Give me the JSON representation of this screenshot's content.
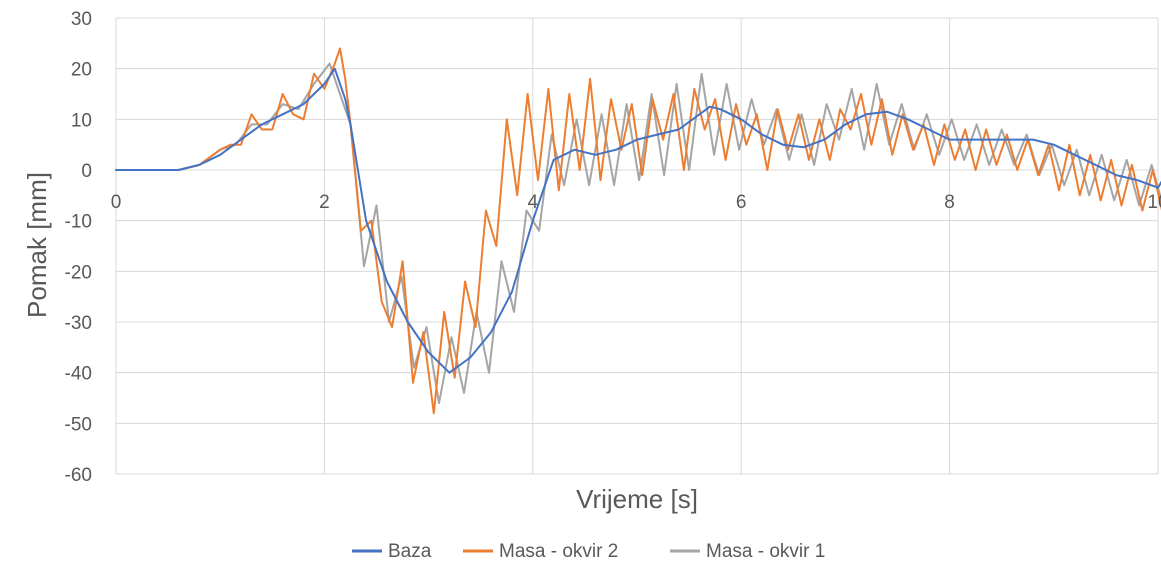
{
  "chart_data": {
    "type": "line",
    "title": "",
    "xlabel": "Vrijeme [s]",
    "ylabel": "Pomak [mm]",
    "xlim": [
      0,
      10
    ],
    "ylim": [
      -60,
      30
    ],
    "x_ticks": [
      0,
      2,
      4,
      6,
      8,
      10
    ],
    "x_tick_labels": [
      "0",
      "2",
      "4",
      "6",
      "8",
      "10"
    ],
    "y_ticks": [
      30,
      20,
      10,
      0,
      -10,
      -20,
      -30,
      -40,
      -50,
      -60
    ],
    "y_tick_labels": [
      "30",
      "20",
      "10",
      "0",
      "-10",
      "-20",
      "-30",
      "-40",
      "-50",
      "-60"
    ],
    "grid": "vertical-and-horizontal",
    "legend_position": "bottom",
    "series": [
      {
        "name": "Baza",
        "color": "#4472c4",
        "x": [
          0,
          0.6,
          0.8,
          1.0,
          1.2,
          1.4,
          1.6,
          1.8,
          2.0,
          2.1,
          2.2,
          2.25,
          2.4,
          2.6,
          2.8,
          3.0,
          3.2,
          3.4,
          3.6,
          3.8,
          4.0,
          4.2,
          4.4,
          4.6,
          4.8,
          5.0,
          5.2,
          5.4,
          5.6,
          5.7,
          5.8,
          6.0,
          6.2,
          6.4,
          6.6,
          6.8,
          7.0,
          7.2,
          7.4,
          7.6,
          7.8,
          8.0,
          8.2,
          8.4,
          8.6,
          8.8,
          9.0,
          9.2,
          9.4,
          9.6,
          9.8,
          10.0,
          10.1
        ],
        "y": [
          0,
          0,
          1,
          3,
          6,
          9,
          11,
          13,
          17,
          20,
          14,
          9,
          -10,
          -22,
          -30,
          -36,
          -40,
          -37,
          -32,
          -24,
          -10,
          2,
          4,
          3,
          4,
          6,
          7,
          8,
          11,
          12.5,
          12,
          10,
          7,
          5,
          4.5,
          6,
          9,
          11,
          11.5,
          10,
          8,
          6,
          6,
          6,
          6,
          6,
          5,
          3,
          1,
          -1,
          -2,
          -3.5,
          0
        ]
      },
      {
        "name": "Masa - okvir 2",
        "color": "#ed7d31",
        "x": [
          0,
          0.6,
          0.8,
          1.0,
          1.1,
          1.2,
          1.3,
          1.4,
          1.5,
          1.6,
          1.7,
          1.8,
          1.9,
          2.0,
          2.1,
          2.15,
          2.2,
          2.25,
          2.35,
          2.45,
          2.55,
          2.65,
          2.75,
          2.85,
          2.95,
          3.05,
          3.15,
          3.25,
          3.35,
          3.45,
          3.55,
          3.65,
          3.75,
          3.85,
          3.95,
          4.05,
          4.15,
          4.25,
          4.35,
          4.45,
          4.55,
          4.65,
          4.75,
          4.85,
          4.95,
          5.05,
          5.15,
          5.25,
          5.35,
          5.45,
          5.55,
          5.65,
          5.75,
          5.85,
          5.95,
          6.05,
          6.15,
          6.25,
          6.35,
          6.45,
          6.55,
          6.65,
          6.75,
          6.85,
          6.95,
          7.05,
          7.15,
          7.25,
          7.35,
          7.45,
          7.55,
          7.65,
          7.75,
          7.85,
          7.95,
          8.05,
          8.15,
          8.25,
          8.35,
          8.45,
          8.55,
          8.65,
          8.75,
          8.85,
          8.95,
          9.05,
          9.15,
          9.25,
          9.35,
          9.45,
          9.55,
          9.65,
          9.75,
          9.85,
          9.95,
          10.05,
          10.1
        ],
        "y": [
          0,
          0,
          1,
          4,
          5,
          5,
          11,
          8,
          8,
          15,
          11,
          10,
          19,
          16,
          21,
          24,
          18,
          9,
          -12,
          -10,
          -26,
          -31,
          -18,
          -42,
          -32,
          -48,
          -28,
          -41,
          -22,
          -31,
          -8,
          -15,
          10,
          -5,
          15,
          -2,
          16,
          -4,
          15,
          0,
          18,
          -2,
          14,
          4,
          13,
          -1,
          14,
          6,
          15,
          0,
          16,
          8,
          14,
          2,
          13,
          5,
          11,
          0,
          12,
          4,
          11,
          2,
          10,
          2,
          12,
          8,
          15,
          5,
          14,
          3,
          11,
          4,
          9,
          1,
          9,
          2,
          8,
          0,
          8,
          1,
          7,
          0,
          6,
          -1,
          5,
          -4,
          5,
          -5,
          3,
          -6,
          2,
          -7,
          1,
          -8,
          0,
          -9,
          -7
        ]
      },
      {
        "name": "Masa - okvir 1",
        "color": "#a5a5a5",
        "x": [
          0,
          0.6,
          0.8,
          1.0,
          1.15,
          1.3,
          1.45,
          1.6,
          1.75,
          1.9,
          2.05,
          2.15,
          2.25,
          2.38,
          2.5,
          2.62,
          2.74,
          2.86,
          2.98,
          3.1,
          3.22,
          3.34,
          3.46,
          3.58,
          3.7,
          3.82,
          3.94,
          4.06,
          4.18,
          4.3,
          4.42,
          4.54,
          4.66,
          4.78,
          4.9,
          5.02,
          5.14,
          5.26,
          5.38,
          5.5,
          5.62,
          5.74,
          5.86,
          5.98,
          6.1,
          6.22,
          6.34,
          6.46,
          6.58,
          6.7,
          6.82,
          6.94,
          7.06,
          7.18,
          7.3,
          7.42,
          7.54,
          7.66,
          7.78,
          7.9,
          8.02,
          8.14,
          8.26,
          8.38,
          8.5,
          8.62,
          8.74,
          8.86,
          8.98,
          9.1,
          9.22,
          9.34,
          9.46,
          9.58,
          9.7,
          9.82,
          9.94,
          10.06,
          10.1
        ],
        "y": [
          0,
          0,
          1,
          4,
          5,
          9,
          9,
          13,
          12,
          17,
          21,
          15,
          9,
          -19,
          -7,
          -30,
          -21,
          -39,
          -31,
          -46,
          -33,
          -44,
          -28,
          -40,
          -18,
          -28,
          -8,
          -12,
          7,
          -3,
          10,
          -3,
          11,
          -3,
          13,
          -2,
          15,
          -1,
          17,
          0,
          19,
          3,
          17,
          4,
          14,
          5,
          12,
          2,
          11,
          1,
          13,
          6,
          16,
          4,
          17,
          5,
          13,
          4,
          11,
          3,
          10,
          2,
          9,
          1,
          8,
          1,
          7,
          -1,
          5,
          -3,
          4,
          -5,
          3,
          -6,
          2,
          -7,
          1,
          -8,
          8
        ]
      }
    ]
  }
}
